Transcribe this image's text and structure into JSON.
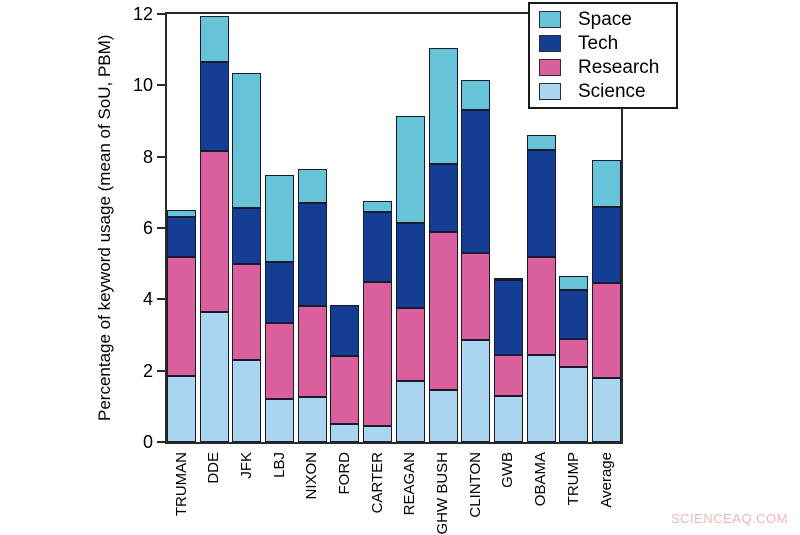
{
  "watermark": {
    "text": "SCIENCEAQ.COM"
  },
  "colors": {
    "background": "#ffffff",
    "outline": "#1a1a2e",
    "frame": "#2a2a2a",
    "text": "#000000",
    "watermark": "#f2b5b8"
  },
  "chart_data": {
    "type": "bar",
    "stacked": true,
    "title": "",
    "xlabel": "",
    "ylabel": "Percentage of keyword usage (mean of SoU, PBM)",
    "ylim": [
      0,
      12
    ],
    "yticks": [
      0,
      2,
      4,
      6,
      8,
      10,
      12
    ],
    "grid": false,
    "legend_position": "top-right",
    "legend_order": [
      "Space",
      "Tech",
      "Research",
      "Science"
    ],
    "categories": [
      "TRUMAN",
      "DDE",
      "JFK",
      "LBJ",
      "NIXON",
      "FORD",
      "CARTER",
      "REAGAN",
      "GHW BUSH",
      "CLINTON",
      "GWB",
      "OBAMA",
      "TRUMP",
      "Average"
    ],
    "series": [
      {
        "name": "Science",
        "color": "#a9d6ee",
        "values": [
          1.85,
          3.65,
          2.3,
          1.2,
          1.25,
          0.5,
          0.45,
          1.7,
          1.45,
          2.85,
          1.3,
          2.45,
          2.1,
          1.8
        ]
      },
      {
        "name": "Research",
        "color": "#da5f9d",
        "values": [
          3.35,
          4.5,
          2.7,
          2.15,
          2.55,
          1.9,
          4.05,
          2.05,
          4.45,
          2.45,
          1.15,
          2.75,
          0.8,
          2.65
        ]
      },
      {
        "name": "Tech",
        "color": "#143d94",
        "values": [
          1.1,
          2.5,
          1.55,
          1.7,
          2.9,
          1.45,
          1.95,
          2.4,
          1.9,
          4.0,
          2.1,
          3.0,
          1.35,
          2.15
        ]
      },
      {
        "name": "Space",
        "color": "#67c3d8",
        "values": [
          0.2,
          1.3,
          3.8,
          2.45,
          0.95,
          0.0,
          0.3,
          3.0,
          3.25,
          0.85,
          0.05,
          0.4,
          0.4,
          1.3
        ]
      }
    ],
    "totals": [
      6.5,
      11.95,
      10.35,
      7.5,
      7.65,
      3.85,
      6.75,
      9.15,
      11.05,
      10.15,
      4.6,
      8.6,
      4.65,
      7.9
    ]
  }
}
